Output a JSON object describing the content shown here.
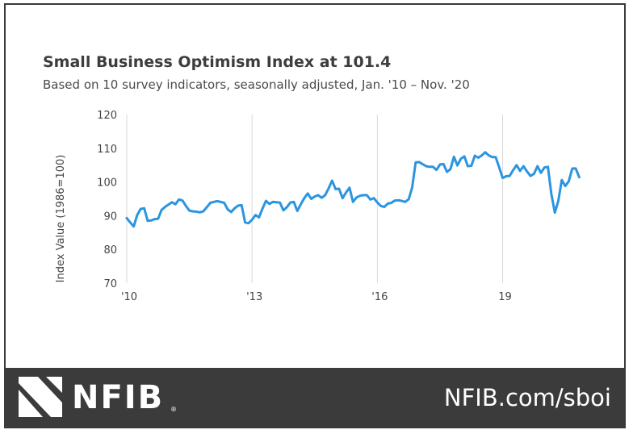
{
  "chart_data": {
    "type": "line",
    "title": "Small Business Optimism Index at 101.4",
    "subtitle": "Based on 10 survey indicators, seasonally adjusted, Jan. '10 – Nov. '20",
    "ylabel": "Index Value (1986=100)",
    "xlabel": "",
    "ylim": [
      70,
      120
    ],
    "yticks": [
      "120",
      "110",
      "100",
      "90",
      "80",
      "70"
    ],
    "ytick_values": [
      120,
      110,
      100,
      90,
      80,
      70
    ],
    "xticks": [
      "'10",
      "'13",
      "'16",
      "19"
    ],
    "xtick_years": [
      2010,
      2013,
      2016,
      2019
    ],
    "xlim_years": [
      2010,
      2021
    ],
    "grid": "vertical",
    "line_color": "#2b95e0",
    "series": [
      {
        "name": "Small Business Optimism Index",
        "start": "Jan 2010",
        "end": "Nov 2020",
        "values": [
          89.3,
          88.0,
          86.8,
          90.2,
          92.0,
          92.2,
          88.5,
          88.6,
          89.0,
          89.1,
          91.7,
          92.6,
          93.3,
          94.0,
          93.4,
          94.8,
          94.5,
          92.9,
          91.5,
          91.3,
          91.2,
          91.0,
          91.3,
          92.5,
          93.8,
          94.1,
          94.3,
          94.1,
          93.8,
          91.9,
          91.1,
          92.2,
          93.0,
          93.1,
          88.0,
          87.8,
          88.8,
          90.2,
          89.5,
          92.1,
          94.4,
          93.5,
          94.1,
          94.0,
          93.9,
          91.6,
          92.5,
          93.9,
          94.1,
          91.4,
          93.4,
          95.2,
          96.6,
          95.0,
          95.7,
          96.1,
          95.3,
          96.1,
          98.1,
          100.4,
          97.9,
          98.0,
          95.2,
          96.9,
          98.3,
          94.1,
          95.4,
          95.9,
          96.1,
          96.1,
          94.8,
          95.2,
          93.9,
          92.9,
          92.6,
          93.6,
          93.8,
          94.5,
          94.6,
          94.4,
          94.1,
          94.9,
          98.4,
          105.8,
          105.9,
          105.3,
          104.7,
          104.5,
          104.5,
          103.6,
          105.2,
          105.3,
          103.0,
          103.8,
          107.5,
          104.9,
          106.9,
          107.6,
          104.7,
          104.8,
          107.8,
          107.2,
          107.9,
          108.8,
          107.9,
          107.4,
          107.4,
          104.4,
          101.2,
          101.7,
          101.8,
          103.5,
          105.0,
          103.3,
          104.7,
          103.1,
          101.8,
          102.4,
          104.7,
          102.7,
          104.3,
          104.5,
          96.4,
          90.9,
          94.4,
          100.6,
          98.8,
          100.2,
          104.0,
          104.0,
          101.4
        ]
      }
    ]
  },
  "footer": {
    "brand": "NFIB",
    "registered_mark": "®",
    "url": "NFIB.com/sboi"
  },
  "colors": {
    "footer_bg": "#3b3b3b",
    "gridline": "#d9d9d9"
  }
}
